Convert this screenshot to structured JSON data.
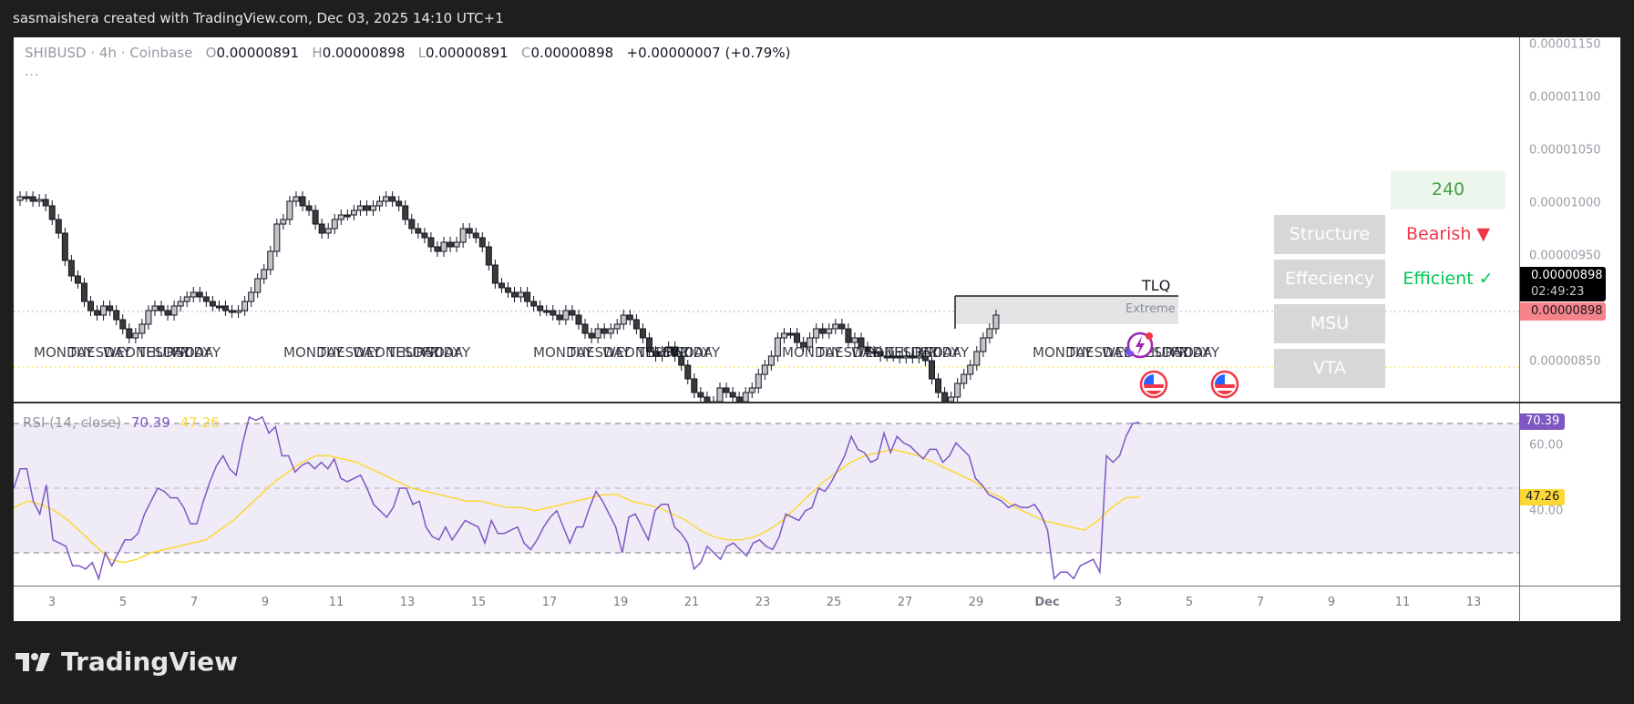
{
  "header": {
    "caption": "sasmaishera created with TradingView.com, Dec 03, 2025 14:10 UTC+1"
  },
  "legend": {
    "symbol": "SHIBUSD · 4h · Coinbase",
    "o_label": "O",
    "o_value": "0.00000891",
    "h_label": "H",
    "h_value": "0.00000898",
    "l_label": "L",
    "l_value": "0.00000891",
    "c_label": "C",
    "c_value": "0.00000898",
    "change": "+0.00000007 (+0.79%)",
    "more": "..."
  },
  "price_axis": {
    "labels": [
      "0.00001150",
      "0.00001100",
      "0.00001050",
      "0.00001000",
      "0.00000950",
      "0.00000850"
    ],
    "current_price": "0.00000898",
    "countdown": "02:49:23",
    "prev_close_badge": "0.00000898"
  },
  "overlay": {
    "timeframe": "240",
    "rows": [
      {
        "label": "Structure",
        "value": "Bearish ▼",
        "color": "#f23645"
      },
      {
        "label": "Effeciency",
        "value": "Efficient ✓",
        "color": "#00c853"
      },
      {
        "label": "MSU",
        "value": ""
      },
      {
        "label": "VTA",
        "value": ""
      }
    ],
    "tlq_label": "TLQ",
    "extreme_label": "Extreme"
  },
  "day_labels": [
    "MONDAY",
    "TUESDAY",
    "WEDNESDAY",
    "THURSDAY",
    "FRIDAY"
  ],
  "rsi": {
    "title": "RSI (14, close)",
    "value": "70.39",
    "ma_value": "47.26",
    "axis_labels": [
      "60.00",
      "40.00"
    ],
    "colors": {
      "rsi": "#7e57c2",
      "ma": "#fdd835"
    }
  },
  "time_axis": {
    "ticks": [
      "3",
      "5",
      "7",
      "9",
      "11",
      "13",
      "15",
      "17",
      "19",
      "21",
      "23",
      "25",
      "27",
      "29",
      "Dec",
      "3",
      "5",
      "7",
      "9",
      "11",
      "13"
    ]
  },
  "branding": {
    "logo_text": "TradingView"
  },
  "chart_data": {
    "type": "candlestick",
    "title": "SHIBUSD · 4h · Coinbase",
    "ohlc_last": {
      "open": 8.91e-06,
      "high": 8.98e-06,
      "low": 8.91e-06,
      "close": 8.98e-06
    },
    "ylim": [
      8.2e-06,
      1.15e-05
    ],
    "y_ticks": [
      8.5e-06,
      9.5e-06,
      1e-05,
      1.05e-05,
      1.1e-05,
      1.15e-05
    ],
    "x_ticks": [
      "3",
      "5",
      "7",
      "9",
      "11",
      "13",
      "15",
      "17",
      "19",
      "21",
      "23",
      "25",
      "27",
      "29",
      "Dec",
      "3",
      "5",
      "7",
      "9",
      "11",
      "13"
    ],
    "indicator": {
      "name": "RSI (14, close)",
      "rsi_last": 70.39,
      "ma_last": 47.26,
      "bands": [
        70,
        50,
        30
      ],
      "rsi_series": [
        50,
        56,
        56,
        46,
        42,
        51,
        34,
        33,
        32,
        26,
        26,
        25,
        27,
        22,
        30,
        26,
        30,
        34,
        34,
        36,
        42,
        46,
        50,
        49,
        47,
        47,
        44,
        39,
        39,
        46,
        52,
        57,
        60,
        56,
        54,
        64,
        72,
        71,
        72,
        67,
        69,
        60,
        60,
        55,
        57,
        58,
        56,
        58,
        56,
        59,
        53,
        52,
        53,
        54,
        50,
        45,
        43,
        41,
        44,
        50,
        50,
        45,
        46,
        38,
        35,
        34,
        38,
        34,
        37,
        40,
        39,
        38,
        33,
        40,
        36,
        36,
        37,
        38,
        33,
        31,
        34,
        38,
        41,
        43,
        38,
        33,
        38,
        38,
        44,
        49,
        46,
        42,
        38,
        30,
        41,
        42,
        38,
        34,
        43,
        45,
        45,
        38,
        36,
        33,
        25,
        27,
        32,
        30,
        28,
        32,
        33,
        31,
        29,
        33,
        34,
        32,
        31,
        35,
        42,
        41,
        40,
        43,
        44,
        50,
        49,
        52,
        56,
        60,
        66,
        62,
        61,
        58,
        59,
        67,
        61,
        66,
        64,
        63,
        61,
        59,
        62,
        62,
        58,
        60,
        64,
        62,
        60,
        53,
        51,
        48,
        47,
        46,
        44,
        45,
        44,
        44,
        45,
        42,
        37,
        22,
        24,
        24,
        22,
        26,
        27,
        28,
        24,
        60,
        58,
        60,
        66,
        70,
        70.39
      ],
      "ma_series": [
        44,
        46,
        45,
        43,
        40,
        36,
        32,
        28,
        27,
        28,
        30,
        31,
        32,
        33,
        34,
        37,
        40,
        44,
        48,
        52,
        55,
        58,
        60,
        60,
        59,
        58,
        56,
        54,
        52,
        50,
        49,
        48,
        47,
        46,
        46,
        45,
        44,
        44,
        43,
        44,
        45,
        46,
        47,
        48,
        48,
        46,
        45,
        44,
        42,
        40,
        37,
        35,
        34,
        34,
        35,
        37,
        40,
        44,
        48,
        52,
        55,
        58,
        60,
        61,
        62,
        61,
        60,
        58,
        56,
        54,
        52,
        49,
        47,
        44,
        42,
        40,
        39,
        38,
        37,
        40,
        44,
        47,
        47.26
      ]
    },
    "annotations": [
      "TLQ",
      "Extreme",
      "Structure: Bearish",
      "Effeciency: Efficient"
    ]
  }
}
